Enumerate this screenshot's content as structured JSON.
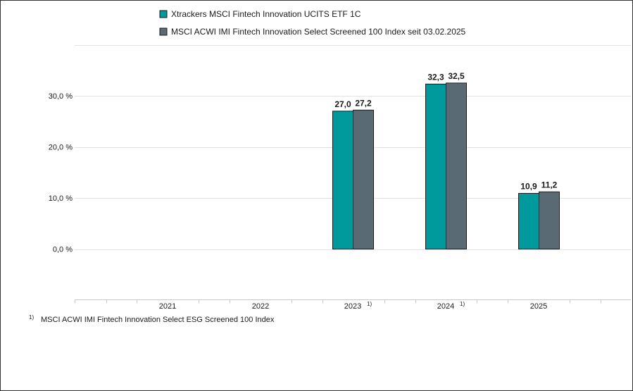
{
  "chart_data": {
    "type": "bar",
    "categories": [
      "2021",
      "2022",
      "2023",
      "2024",
      "2025"
    ],
    "category_footnotes": [
      "",
      "",
      "1)",
      "1)",
      ""
    ],
    "series": [
      {
        "name": "Xtrackers MSCI Fintech Innovation UCITS ETF 1C",
        "values": [
          null,
          null,
          27.0,
          32.3,
          10.9
        ],
        "labels": [
          "",
          "",
          "27,0",
          "32,3",
          "10,9"
        ],
        "color": "#009a9c"
      },
      {
        "name": "MSCI ACWI IMI Fintech Innovation Select Screened 100 Index seit 03.02.2025",
        "values": [
          null,
          null,
          27.2,
          32.5,
          11.2
        ],
        "labels": [
          "",
          "",
          "27,2",
          "32,5",
          "11,2"
        ],
        "color": "#5a6a75"
      }
    ],
    "y_ticks": [
      0,
      10,
      20,
      30
    ],
    "y_tick_labels": [
      "0,0 %",
      "10,0 %",
      "20,0 %",
      "30,0 %"
    ],
    "ylim": [
      -10,
      40
    ],
    "grid": true,
    "legend_position": "top",
    "footnote": {
      "marker": "1)",
      "text": "MSCI ACWI IMI Fintech Innovation Select ESG Screened 100 Index"
    }
  }
}
